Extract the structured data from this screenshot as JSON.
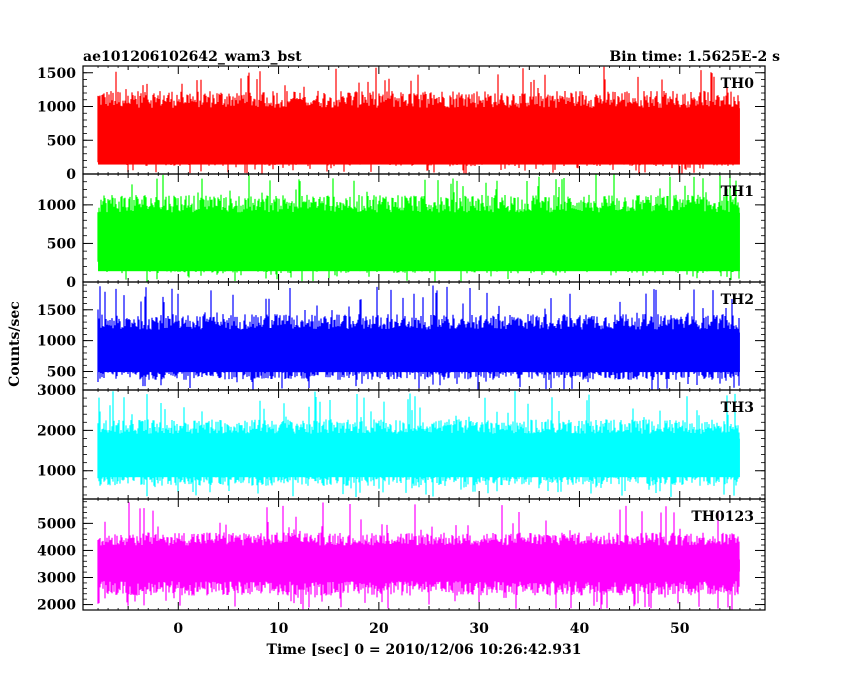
{
  "header": {
    "left_title": "ae101206102642_wam3_bst",
    "right_title": "Bin time: 1.5625E-2 s"
  },
  "chart_data": {
    "type": "line",
    "ylabel": "Counts/sec",
    "xlabel": "Time [sec] 0 = 2010/12/06 10:26:42.931",
    "x_range": [
      -8,
      56
    ],
    "xlim": [
      -9.5,
      58.5
    ],
    "x_ticks": [
      0,
      10,
      20,
      30,
      40,
      50
    ],
    "x_tick_labels": [
      "0",
      "10",
      "20",
      "30",
      "40",
      "50"
    ],
    "bin_time_s": 0.015625,
    "panels": [
      {
        "name": "TH0",
        "color": "#ff0000",
        "ylim": [
          0,
          1600
        ],
        "yticks": [
          0,
          500,
          1000,
          1500
        ],
        "ytick_labels": [
          "0",
          "500",
          "1000",
          "1500"
        ],
        "low": 0,
        "base": 100,
        "mid": 650,
        "high": 1250,
        "max": 1600
      },
      {
        "name": "TH1",
        "color": "#00ff00",
        "ylim": [
          0,
          1400
        ],
        "yticks": [
          0,
          500,
          1000
        ],
        "ytick_labels": [
          "0",
          "500",
          "1000"
        ],
        "low": 0,
        "base": 100,
        "mid": 600,
        "high": 1150,
        "max": 1400
      },
      {
        "name": "TH2",
        "color": "#0000ff",
        "ylim": [
          200,
          1950
        ],
        "yticks": [
          500,
          1000,
          1500
        ],
        "ytick_labels": [
          "500",
          "1000",
          "1500"
        ],
        "low": 200,
        "base": 350,
        "mid": 850,
        "high": 1450,
        "max": 1900
      },
      {
        "name": "TH3",
        "color": "#00ffff",
        "ylim": [
          300,
          3000
        ],
        "yticks": [
          1000,
          2000,
          3000
        ],
        "ytick_labels": [
          "1000",
          "2000",
          "3000"
        ],
        "low": 350,
        "base": 600,
        "mid": 1450,
        "high": 2300,
        "max": 3000
      },
      {
        "name": "TH0123",
        "color": "#ff00ff",
        "ylim": [
          1800,
          5900
        ],
        "yticks": [
          2000,
          3000,
          4000,
          5000
        ],
        "ytick_labels": [
          "2000",
          "3000",
          "4000",
          "5000"
        ],
        "low": 1800,
        "base": 2300,
        "mid": 3550,
        "high": 4700,
        "max": 5800
      }
    ]
  }
}
